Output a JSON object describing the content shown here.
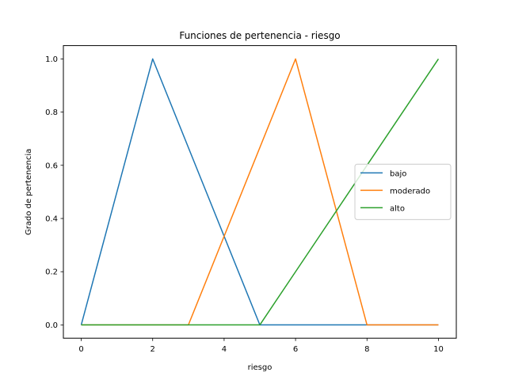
{
  "chart_data": {
    "type": "line",
    "title": "Funciones de pertenencia - riesgo",
    "xlabel": "riesgo",
    "ylabel": "Grado de pertenencia",
    "xlim": [
      -0.5,
      10.5
    ],
    "ylim": [
      -0.05,
      1.05
    ],
    "xticks": [
      0,
      2,
      4,
      6,
      8,
      10
    ],
    "yticks": [
      0.0,
      0.2,
      0.4,
      0.6,
      0.8,
      1.0
    ],
    "xtick_labels": [
      "0",
      "2",
      "4",
      "6",
      "8",
      "10"
    ],
    "ytick_labels": [
      "0.0",
      "0.2",
      "0.4",
      "0.6",
      "0.8",
      "1.0"
    ],
    "grid": false,
    "legend_position": "center-right",
    "series": [
      {
        "name": "bajo",
        "color": "#1f77b4",
        "x": [
          0,
          2,
          5,
          10
        ],
        "y": [
          0,
          1,
          0,
          0
        ]
      },
      {
        "name": "moderado",
        "color": "#ff7f0e",
        "x": [
          0,
          3,
          6,
          8,
          10
        ],
        "y": [
          0,
          0,
          1,
          0,
          0
        ]
      },
      {
        "name": "alto",
        "color": "#2ca02c",
        "x": [
          0,
          5,
          10
        ],
        "y": [
          0,
          0,
          1
        ]
      }
    ]
  }
}
